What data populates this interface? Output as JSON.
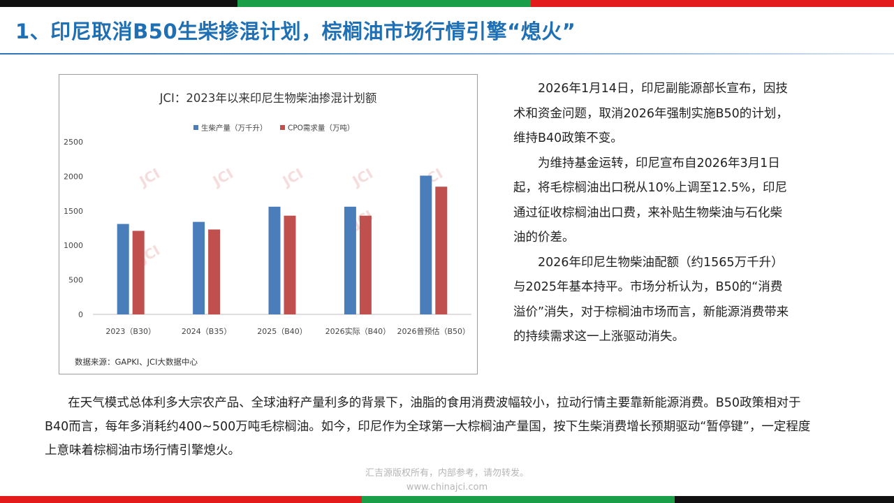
{
  "colors": {
    "top_bar": [
      "#111111",
      "#1a9f48",
      "#e31b1b"
    ],
    "bottom_bar": [
      "#e31b1b",
      "#1a9f48",
      "#111111"
    ],
    "title": "#1f6fb5",
    "series_biodiesel": "#4a7ebb",
    "series_cpo": "#c0504d"
  },
  "title": "1、印尼取消B50生柴掺混计划，棕榈油市场行情引擎“熄火”",
  "chart_data": {
    "type": "bar",
    "title": "JCI：2023年以来印尼生物柴油掺混计划额",
    "categories": [
      "2023（B30）",
      "2024（B35）",
      "2025（B40）",
      "2026实际（B40）",
      "2026曾预估（B50）"
    ],
    "series": [
      {
        "name": "生柴产量（万千升）",
        "values": [
          1310,
          1340,
          1560,
          1560,
          2010
        ]
      },
      {
        "name": "CPO需求量（万吨）",
        "values": [
          1210,
          1230,
          1430,
          1430,
          1850
        ]
      }
    ],
    "yticks": [
      "2500",
      "2000",
      "1500",
      "1000",
      "500",
      "0"
    ],
    "ylim": [
      0,
      2500
    ],
    "legend": "top-center",
    "grid": false,
    "watermark": "JCI",
    "source": "数据来源：GAPKI、JCI大数据中心"
  },
  "right_paragraphs": [
    "2026年1月14日，印尼副能源部长宣布，因技术和资金问题，取消2026年强制实施B50的计划，维持B40政策不变。",
    "为维持基金运转，印尼宣布自2026年3月1日起，将毛棕榈油出口税从10%上调至12.5%，印尼通过征收棕榈油出口费，来补贴生物柴油与石化柴油的价差。",
    "2026年印尼生物柴油配额（约1565万千升）与2025年基本持平。市场分析认为，B50的“消费溢价”消失，对于棕榈油市场而言，新能源消费带来的持续需求这一上涨驱动消失。"
  ],
  "bottom_paragraph": "在天气模式总体利多大宗农产品、全球油籽产量利多的背景下，油脂的食用消费波幅较小，拉动行情主要靠新能源消费。B50政策相对于B40而言，每年多消耗约400~500万吨毛棕榈油。如今，印尼作为全球第一大棕榈油产量国，按下生柴消费增长预期驱动“暂停键”，一定程度上意味着棕榈油市场行情引擎熄火。",
  "footer": {
    "copyright": "汇吉源版权所有，内部参考，请勿转发。",
    "url": "www.chinajci.com"
  }
}
